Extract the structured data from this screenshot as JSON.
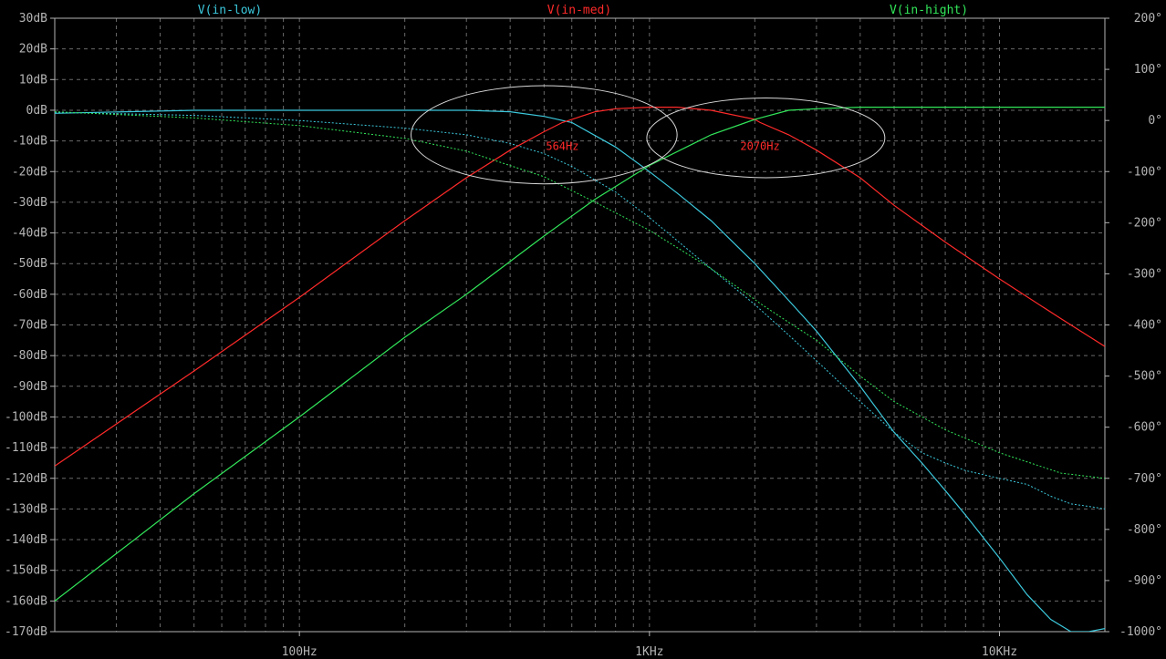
{
  "chart_data": {
    "type": "line",
    "title": "",
    "xlabel": "",
    "ylabel": "",
    "x_scale": "log",
    "xlim": [
      20,
      20000
    ],
    "ylim_left": [
      -170,
      30
    ],
    "ylim_right": [
      -1000,
      200
    ],
    "grid": true,
    "x_ticks": [
      {
        "value": 100,
        "label": "100Hz"
      },
      {
        "value": 1000,
        "label": "1KHz"
      },
      {
        "value": 10000,
        "label": "10KHz"
      }
    ],
    "y_left_ticks": [
      {
        "value": 30,
        "label": "30dB"
      },
      {
        "value": 20,
        "label": "20dB"
      },
      {
        "value": 10,
        "label": "10dB"
      },
      {
        "value": 0,
        "label": "0dB"
      },
      {
        "value": -10,
        "label": "-10dB"
      },
      {
        "value": -20,
        "label": "-20dB"
      },
      {
        "value": -30,
        "label": "-30dB"
      },
      {
        "value": -40,
        "label": "-40dB"
      },
      {
        "value": -50,
        "label": "-50dB"
      },
      {
        "value": -60,
        "label": "-60dB"
      },
      {
        "value": -70,
        "label": "-70dB"
      },
      {
        "value": -80,
        "label": "-80dB"
      },
      {
        "value": -90,
        "label": "-90dB"
      },
      {
        "value": -100,
        "label": "-100dB"
      },
      {
        "value": -110,
        "label": "-110dB"
      },
      {
        "value": -120,
        "label": "-120dB"
      },
      {
        "value": -130,
        "label": "-130dB"
      },
      {
        "value": -140,
        "label": "-140dB"
      },
      {
        "value": -150,
        "label": "-150dB"
      },
      {
        "value": -160,
        "label": "-160dB"
      },
      {
        "value": -170,
        "label": "-170dB"
      }
    ],
    "y_right_ticks": [
      {
        "value": 200,
        "label": "200°"
      },
      {
        "value": 100,
        "label": "100°"
      },
      {
        "value": 0,
        "label": "0°"
      },
      {
        "value": -100,
        "label": "-100°"
      },
      {
        "value": -200,
        "label": "-200°"
      },
      {
        "value": -300,
        "label": "-300°"
      },
      {
        "value": -400,
        "label": "-400°"
      },
      {
        "value": -500,
        "label": "-500°"
      },
      {
        "value": -600,
        "label": "-600°"
      },
      {
        "value": -700,
        "label": "-700°"
      },
      {
        "value": -800,
        "label": "-800°"
      },
      {
        "value": -900,
        "label": "-900°"
      },
      {
        "value": -1000,
        "label": "-1000°"
      }
    ],
    "series": [
      {
        "name": "V(in-low)",
        "color": "#3cc8dc",
        "x": [
          20,
          50,
          100,
          200,
          300,
          400,
          500,
          600,
          800,
          1000,
          1200,
          1500,
          2000,
          2500,
          3000,
          4000,
          5000,
          6000,
          7000,
          8000,
          10000,
          12000,
          14000,
          16000,
          18000,
          20000
        ],
        "magnitude_db": [
          -1,
          0,
          0,
          0,
          0,
          -0.5,
          -2,
          -4,
          -12,
          -20,
          -27,
          -36,
          -50,
          -62,
          -72,
          -90,
          -105,
          -115,
          -124,
          -132,
          -146,
          -158,
          -166,
          -170,
          -170,
          -169
        ],
        "phase_deg": [
          16,
          10,
          0,
          -15,
          -28,
          -45,
          -65,
          -90,
          -140,
          -190,
          -235,
          -290,
          -360,
          -420,
          -470,
          -550,
          -610,
          -650,
          -670,
          -685,
          -700,
          -712,
          -735,
          -750,
          -755,
          -760
        ]
      },
      {
        "name": "V(in-med)",
        "color": "#ff2a2a",
        "x": [
          20,
          50,
          100,
          200,
          300,
          400,
          500,
          564,
          700,
          800,
          1000,
          1200,
          1500,
          2000,
          2070,
          2500,
          3000,
          4000,
          5000,
          7000,
          10000,
          15000,
          20000
        ],
        "magnitude_db": [
          -116,
          -85,
          -61,
          -36,
          -22,
          -13,
          -7,
          -4,
          -0.5,
          0.5,
          1,
          1,
          0,
          -3,
          -4,
          -8,
          -13,
          -22,
          -31,
          -43,
          -55,
          -68,
          -77
        ],
        "phase_deg": []
      },
      {
        "name": "V(in-hight)",
        "color": "#32e65a",
        "x": [
          20,
          50,
          100,
          200,
          300,
          500,
          700,
          1000,
          1500,
          2000,
          2070,
          2500,
          3000,
          4000,
          5000,
          7000,
          10000,
          15000,
          20000
        ],
        "magnitude_db": [
          -160,
          -125,
          -100,
          -74,
          -60,
          -41,
          -29,
          -18,
          -8,
          -3,
          -2.5,
          0,
          0.5,
          1,
          1,
          1,
          1,
          1,
          1
        ],
        "phase_deg": [
          17,
          5,
          -10,
          -35,
          -60,
          -110,
          -160,
          -215,
          -290,
          -350,
          -358,
          -395,
          -430,
          -500,
          -550,
          -605,
          -650,
          -690,
          -700
        ]
      }
    ],
    "annotations": [
      {
        "label": "564Hz",
        "x": 564,
        "y_db": -13,
        "ellipse_center_x": 500,
        "ellipse_center_y_db": -8,
        "ellipse_rx_decades": 0.38,
        "ellipse_ry_db": 16
      },
      {
        "label": "2070Hz",
        "x": 2070,
        "y_db": -13,
        "ellipse_center_x": 2150,
        "ellipse_center_y_db": -9,
        "ellipse_rx_decades": 0.34,
        "ellipse_ry_db": 13
      }
    ]
  }
}
